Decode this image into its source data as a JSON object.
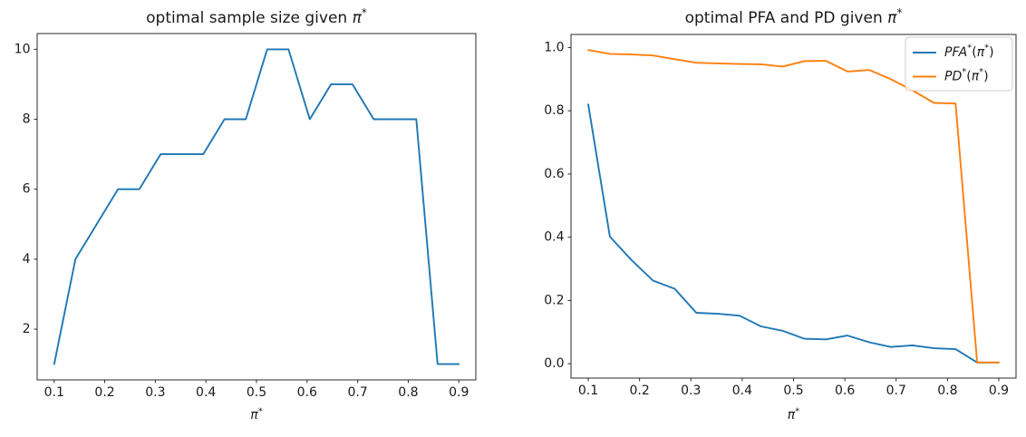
{
  "figure": {
    "background": "#ffffff",
    "text_color": "#1a1a1a",
    "spine_color": "#2a2a2a"
  },
  "chart_data": [
    {
      "type": "line",
      "title": "optimal sample size given π*",
      "title_parts": [
        {
          "text": "optimal sample size given ",
          "style": "regular"
        },
        {
          "text": "π",
          "style": "italic"
        },
        {
          "text": "*",
          "style": "sup"
        }
      ],
      "xlabel": "π*",
      "xlabel_parts": [
        {
          "text": "π",
          "style": "italic"
        },
        {
          "text": "*",
          "style": "sup"
        }
      ],
      "x": [
        0.1,
        0.1421,
        0.1842,
        0.2263,
        0.2684,
        0.3105,
        0.3526,
        0.3947,
        0.4368,
        0.4789,
        0.5211,
        0.5632,
        0.6053,
        0.6474,
        0.6895,
        0.7316,
        0.7737,
        0.8158,
        0.8579,
        0.9
      ],
      "series": [
        {
          "color": "#1f77b4",
          "values": [
            1,
            4,
            5,
            6,
            6,
            7,
            7,
            7,
            8,
            8,
            10,
            10,
            8,
            9,
            9,
            8,
            8,
            8,
            1,
            1
          ]
        }
      ],
      "xticks": {
        "values": [
          0.1,
          0.2,
          0.3,
          0.4,
          0.5,
          0.6,
          0.7,
          0.8,
          0.9
        ],
        "labels": [
          "0.1",
          "0.2",
          "0.3",
          "0.4",
          "0.5",
          "0.6",
          "0.7",
          "0.8",
          "0.9"
        ]
      },
      "yticks": {
        "values": [
          2,
          4,
          6,
          8,
          10
        ],
        "labels": [
          "2",
          "4",
          "6",
          "8",
          "10"
        ]
      },
      "xlim": [
        0.0664,
        0.9336
      ],
      "ylim": [
        0.55,
        10.45
      ],
      "grid": false,
      "legend": null
    },
    {
      "type": "line",
      "title": "optimal PFA and PD given π*",
      "title_parts": [
        {
          "text": "optimal PFA and PD given ",
          "style": "regular"
        },
        {
          "text": "π",
          "style": "italic"
        },
        {
          "text": "*",
          "style": "sup"
        }
      ],
      "xlabel": "π*",
      "xlabel_parts": [
        {
          "text": "π",
          "style": "italic"
        },
        {
          "text": "*",
          "style": "sup"
        }
      ],
      "x": [
        0.1,
        0.1421,
        0.1842,
        0.2263,
        0.2684,
        0.3105,
        0.3526,
        0.3947,
        0.4368,
        0.4789,
        0.5211,
        0.5632,
        0.6053,
        0.6474,
        0.6895,
        0.7316,
        0.7737,
        0.8158,
        0.8579,
        0.9
      ],
      "series": [
        {
          "name": "PFA*(π*)",
          "label_parts": [
            {
              "text": "PFA",
              "style": "italic"
            },
            {
              "text": "*",
              "style": "sup"
            },
            {
              "text": "(",
              "style": "regular"
            },
            {
              "text": "π",
              "style": "italic"
            },
            {
              "text": "*",
              "style": "sup"
            },
            {
              "text": ")",
              "style": "regular"
            }
          ],
          "color": "#1f77b4",
          "values": [
            0.82,
            0.402,
            0.328,
            0.263,
            0.237,
            0.161,
            0.158,
            0.152,
            0.118,
            0.104,
            0.079,
            0.077,
            0.089,
            0.068,
            0.053,
            0.058,
            0.049,
            0.046,
            0.004,
            0.004
          ]
        },
        {
          "name": "PD*(π*)",
          "label_parts": [
            {
              "text": "PD",
              "style": "italic"
            },
            {
              "text": "*",
              "style": "sup"
            },
            {
              "text": "(",
              "style": "regular"
            },
            {
              "text": "π",
              "style": "italic"
            },
            {
              "text": "*",
              "style": "sup"
            },
            {
              "text": ")",
              "style": "regular"
            }
          ],
          "color": "#ff7f0e",
          "values": [
            0.992,
            0.98,
            0.978,
            0.975,
            0.963,
            0.952,
            0.95,
            0.948,
            0.947,
            0.94,
            0.957,
            0.958,
            0.924,
            0.929,
            0.9,
            0.865,
            0.825,
            0.823,
            0.004,
            0.004
          ]
        }
      ],
      "xticks": {
        "values": [
          0.1,
          0.2,
          0.3,
          0.4,
          0.5,
          0.6,
          0.7,
          0.8,
          0.9
        ],
        "labels": [
          "0.1",
          "0.2",
          "0.3",
          "0.4",
          "0.5",
          "0.6",
          "0.7",
          "0.8",
          "0.9"
        ]
      },
      "yticks": {
        "values": [
          0.0,
          0.2,
          0.4,
          0.6,
          0.8,
          1.0
        ],
        "labels": [
          "0.0",
          "0.2",
          "0.4",
          "0.6",
          "0.8",
          "1.0"
        ]
      },
      "xlim": [
        0.0664,
        0.9336
      ],
      "ylim": [
        -0.0454,
        1.0414
      ],
      "grid": false,
      "legend": {
        "position": "upper right",
        "entries": [
          "PFA*(π*)",
          "PD*(π*)"
        ]
      }
    }
  ]
}
